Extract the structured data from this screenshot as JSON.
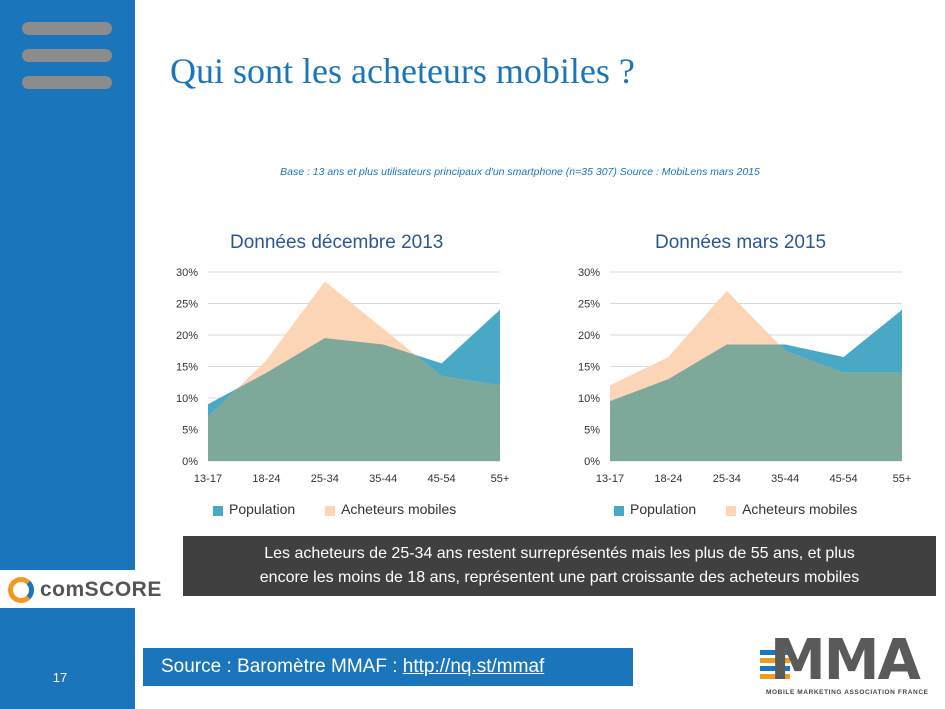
{
  "title": "Qui sont les acheteurs mobiles ?",
  "base_note": "Base : 13 ans et plus utilisateurs principaux d'un smartphone (n=35 307)  Source : MobiLens mars 2015",
  "colors": {
    "population": "#4aa8c7",
    "acheteurs": "#fbd5b5",
    "overlap": "#7ea89a",
    "brand": "#1b75bb"
  },
  "chart_data": [
    {
      "type": "area",
      "title": "Données décembre 2013",
      "categories": [
        "13-17",
        "18-24",
        "25-34",
        "35-44",
        "45-54",
        "55+"
      ],
      "y_ticks": [
        "0%",
        "5%",
        "10%",
        "15%",
        "20%",
        "25%",
        "30%"
      ],
      "ylim": [
        0,
        30
      ],
      "grid": true,
      "legend_placement": "bottom",
      "series": [
        {
          "name": "Population",
          "values": [
            9,
            14,
            19.5,
            18.5,
            15.5,
            24
          ]
        },
        {
          "name": "Acheteurs mobiles",
          "values": [
            7,
            16,
            28.5,
            21,
            13.5,
            12
          ]
        }
      ]
    },
    {
      "type": "area",
      "title": "Données mars 2015",
      "categories": [
        "13-17",
        "18-24",
        "25-34",
        "35-44",
        "45-54",
        "55+"
      ],
      "y_ticks": [
        "0%",
        "5%",
        "10%",
        "15%",
        "20%",
        "25%",
        "30%"
      ],
      "ylim": [
        0,
        30
      ],
      "grid": true,
      "legend_placement": "bottom",
      "series": [
        {
          "name": "Population",
          "values": [
            9.5,
            13,
            18.5,
            18.5,
            16.5,
            24
          ]
        },
        {
          "name": "Acheteurs mobiles",
          "values": [
            12,
            16.5,
            27,
            17.5,
            14,
            14
          ]
        }
      ]
    }
  ],
  "callout": {
    "line1": "Les acheteurs de 25-34 ans restent surreprésentés mais les plus de 55 ans, et plus",
    "line2": "encore les moins de 18 ans, représentent une part croissante des acheteurs mobiles"
  },
  "source": {
    "label": "Source : Baromètre MMAF : ",
    "link": "http://nq.st/mmaf"
  },
  "page_number": "17",
  "logos": {
    "comscore": "comSCORE",
    "mma": "MMA",
    "mma_sub": "MOBILE MARKETING ASSOCIATION FRANCE"
  },
  "icons": {
    "menu": "hamburger-menu-icon",
    "comscore": "comscore-logo-icon",
    "mma": "mma-logo-icon"
  }
}
